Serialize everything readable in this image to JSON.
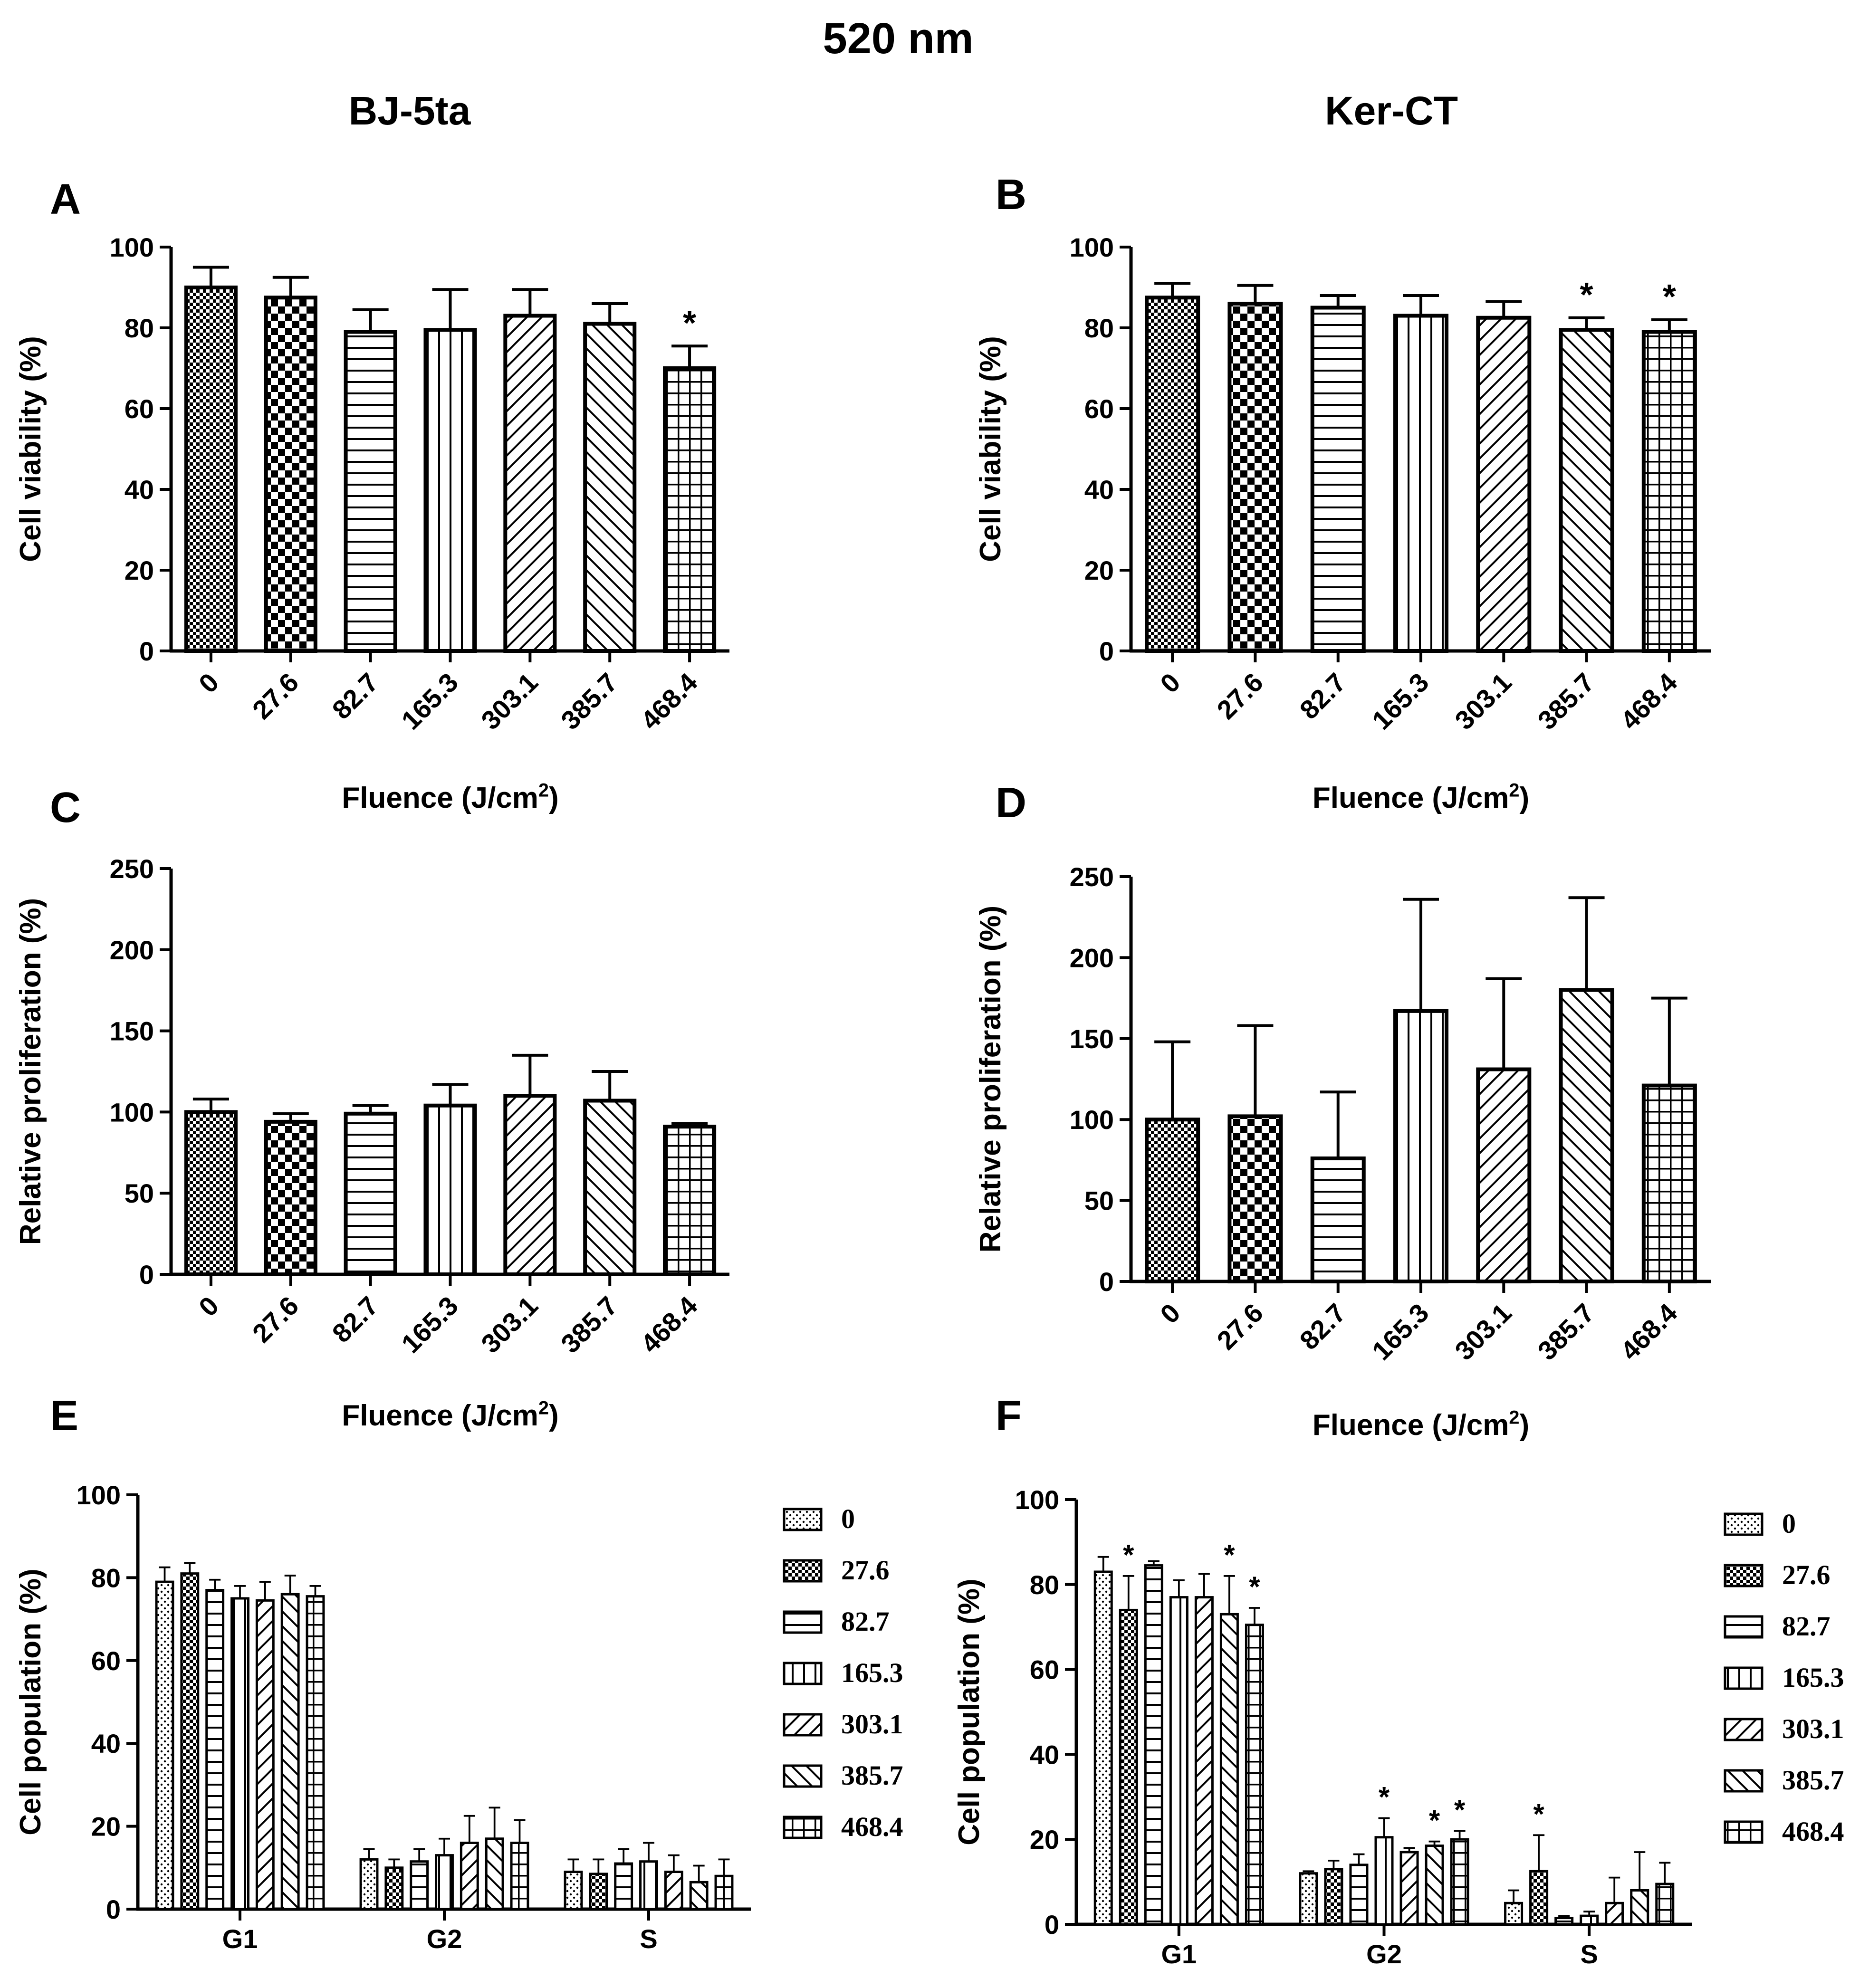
{
  "figure": {
    "title": "520 nm",
    "column_titles": [
      "BJ-5ta",
      "Ker-CT"
    ],
    "panel_letters": [
      "A",
      "B",
      "C",
      "D",
      "E",
      "F"
    ]
  },
  "chart_data": [
    {
      "panel": "A",
      "type": "bar",
      "title": "",
      "xlabel": "Fluence (J/cm2)",
      "ylabel": "Cell viability (%)",
      "categories": [
        "0",
        "27.6",
        "82.7",
        "165.3",
        "303.1",
        "385.7",
        "468.4"
      ],
      "values": [
        90,
        87.5,
        79,
        79.5,
        83,
        81,
        70
      ],
      "errors": [
        5,
        5,
        5.5,
        10,
        6.5,
        5,
        5.5
      ],
      "significance": [
        "",
        "",
        "",
        "",
        "",
        "",
        "*"
      ],
      "patterns": [
        "dense-check",
        "checker",
        "horizontal",
        "vertical",
        "diag-right",
        "diag-left",
        "grid"
      ],
      "ylim": [
        0,
        100
      ],
      "yticks": [
        "0",
        "20",
        "40",
        "60",
        "80",
        "100"
      ]
    },
    {
      "panel": "B",
      "type": "bar",
      "title": "",
      "xlabel": "Fluence (J/cm2)",
      "ylabel": "Cell viability (%)",
      "categories": [
        "0",
        "27.6",
        "82.7",
        "165.3",
        "303.1",
        "385.7",
        "468.4"
      ],
      "values": [
        87.5,
        86,
        85,
        83,
        82.5,
        79.5,
        79
      ],
      "errors": [
        3.5,
        4.5,
        3,
        5,
        4,
        3,
        3
      ],
      "significance": [
        "",
        "",
        "",
        "",
        "",
        "*",
        "*"
      ],
      "patterns": [
        "dense-check",
        "checker",
        "horizontal",
        "vertical",
        "diag-right",
        "diag-left",
        "grid"
      ],
      "ylim": [
        0,
        100
      ],
      "yticks": [
        "0",
        "20",
        "40",
        "60",
        "80",
        "100"
      ]
    },
    {
      "panel": "C",
      "type": "bar",
      "title": "",
      "xlabel": "Fluence (J/cm2)",
      "ylabel": "Relative proliferation (%)",
      "categories": [
        "0",
        "27.6",
        "82.7",
        "165.3",
        "303.1",
        "385.7",
        "468.4"
      ],
      "values": [
        100,
        94,
        99,
        104,
        110,
        107,
        91
      ],
      "errors": [
        8,
        5,
        5,
        13,
        25,
        18,
        2
      ],
      "significance": [
        "",
        "",
        "",
        "",
        "",
        "",
        ""
      ],
      "patterns": [
        "dense-check",
        "checker",
        "horizontal",
        "vertical",
        "diag-right",
        "diag-left",
        "grid"
      ],
      "ylim": [
        0,
        250
      ],
      "yticks": [
        "0",
        "50",
        "100",
        "150",
        "200",
        "250"
      ]
    },
    {
      "panel": "D",
      "type": "bar",
      "title": "",
      "xlabel": "Fluence (J/cm2)",
      "ylabel": "Relative proliferation (%)",
      "categories": [
        "0",
        "27.6",
        "82.7",
        "165.3",
        "303.1",
        "385.7",
        "468.4"
      ],
      "values": [
        100,
        102,
        76,
        167,
        131,
        180,
        121
      ],
      "errors": [
        48,
        56,
        41,
        69,
        56,
        57,
        54
      ],
      "significance": [
        "",
        "",
        "",
        "",
        "",
        "",
        ""
      ],
      "patterns": [
        "dense-check",
        "checker",
        "horizontal",
        "vertical",
        "diag-right",
        "diag-left",
        "grid"
      ],
      "ylim": [
        0,
        250
      ],
      "yticks": [
        "0",
        "50",
        "100",
        "150",
        "200",
        "250"
      ]
    },
    {
      "panel": "E",
      "type": "bar",
      "title": "",
      "xlabel": "",
      "ylabel": "Cell population (%)",
      "categories": [
        "G1",
        "G2",
        "S"
      ],
      "series": [
        {
          "name": "0",
          "values": [
            79,
            12,
            9
          ],
          "errors": [
            3.5,
            2.5,
            3
          ],
          "significance": [
            "",
            "",
            ""
          ],
          "pattern": "dots"
        },
        {
          "name": "27.6",
          "values": [
            81,
            10,
            8.5
          ],
          "errors": [
            2.5,
            2,
            3.5
          ],
          "significance": [
            "",
            "",
            ""
          ],
          "pattern": "dense-check"
        },
        {
          "name": "82.7",
          "values": [
            77,
            11.5,
            11
          ],
          "errors": [
            2.5,
            3,
            3.5
          ],
          "significance": [
            "",
            "",
            ""
          ],
          "pattern": "horizontal"
        },
        {
          "name": "165.3",
          "values": [
            75,
            13,
            11.5
          ],
          "errors": [
            3,
            4,
            4.5
          ],
          "significance": [
            "",
            "",
            ""
          ],
          "pattern": "vertical"
        },
        {
          "name": "303.1",
          "values": [
            74.5,
            16,
            9
          ],
          "errors": [
            4.5,
            6.5,
            4
          ],
          "significance": [
            "",
            "",
            ""
          ],
          "pattern": "diag-right"
        },
        {
          "name": "385.7",
          "values": [
            76,
            17,
            6.5
          ],
          "errors": [
            4.5,
            7.5,
            4
          ],
          "significance": [
            "",
            "",
            ""
          ],
          "pattern": "diag-left"
        },
        {
          "name": "468.4",
          "values": [
            75.5,
            16,
            8
          ],
          "errors": [
            2.5,
            5.5,
            4
          ],
          "significance": [
            "",
            "",
            ""
          ],
          "pattern": "grid"
        }
      ],
      "ylim": [
        0,
        100
      ],
      "yticks": [
        "0",
        "20",
        "40",
        "60",
        "80",
        "100"
      ],
      "legend": "right"
    },
    {
      "panel": "F",
      "type": "bar",
      "title": "",
      "xlabel": "",
      "ylabel": "Cell population (%)",
      "categories": [
        "G1",
        "G2",
        "S"
      ],
      "series": [
        {
          "name": "0",
          "values": [
            83,
            12,
            5
          ],
          "errors": [
            3.5,
            0.5,
            3
          ],
          "significance": [
            "",
            "",
            ""
          ],
          "pattern": "dots"
        },
        {
          "name": "27.6",
          "values": [
            74,
            13,
            12.5
          ],
          "errors": [
            8,
            2,
            8.5
          ],
          "significance": [
            "*",
            "",
            "*"
          ],
          "pattern": "dense-check"
        },
        {
          "name": "82.7",
          "values": [
            84.5,
            14,
            1.5
          ],
          "errors": [
            1,
            2.5,
            0.5
          ],
          "significance": [
            "",
            "",
            ""
          ],
          "pattern": "horizontal"
        },
        {
          "name": "165.3",
          "values": [
            77,
            20.5,
            2
          ],
          "errors": [
            4,
            4.5,
            1
          ],
          "significance": [
            "",
            "*",
            ""
          ],
          "pattern": "vertical"
        },
        {
          "name": "303.1",
          "values": [
            77,
            17,
            5
          ],
          "errors": [
            5.5,
            1,
            6
          ],
          "significance": [
            "",
            "",
            ""
          ],
          "pattern": "diag-right"
        },
        {
          "name": "385.7",
          "values": [
            73,
            18.5,
            8
          ],
          "errors": [
            9,
            1,
            9
          ],
          "significance": [
            "*",
            "*",
            ""
          ],
          "pattern": "diag-left"
        },
        {
          "name": "468.4",
          "values": [
            70.5,
            20,
            9.5
          ],
          "errors": [
            4,
            2,
            5
          ],
          "significance": [
            "*",
            "*",
            ""
          ],
          "pattern": "grid"
        }
      ],
      "ylim": [
        0,
        100
      ],
      "yticks": [
        "0",
        "20",
        "40",
        "60",
        "80",
        "100"
      ],
      "legend": "right"
    }
  ]
}
